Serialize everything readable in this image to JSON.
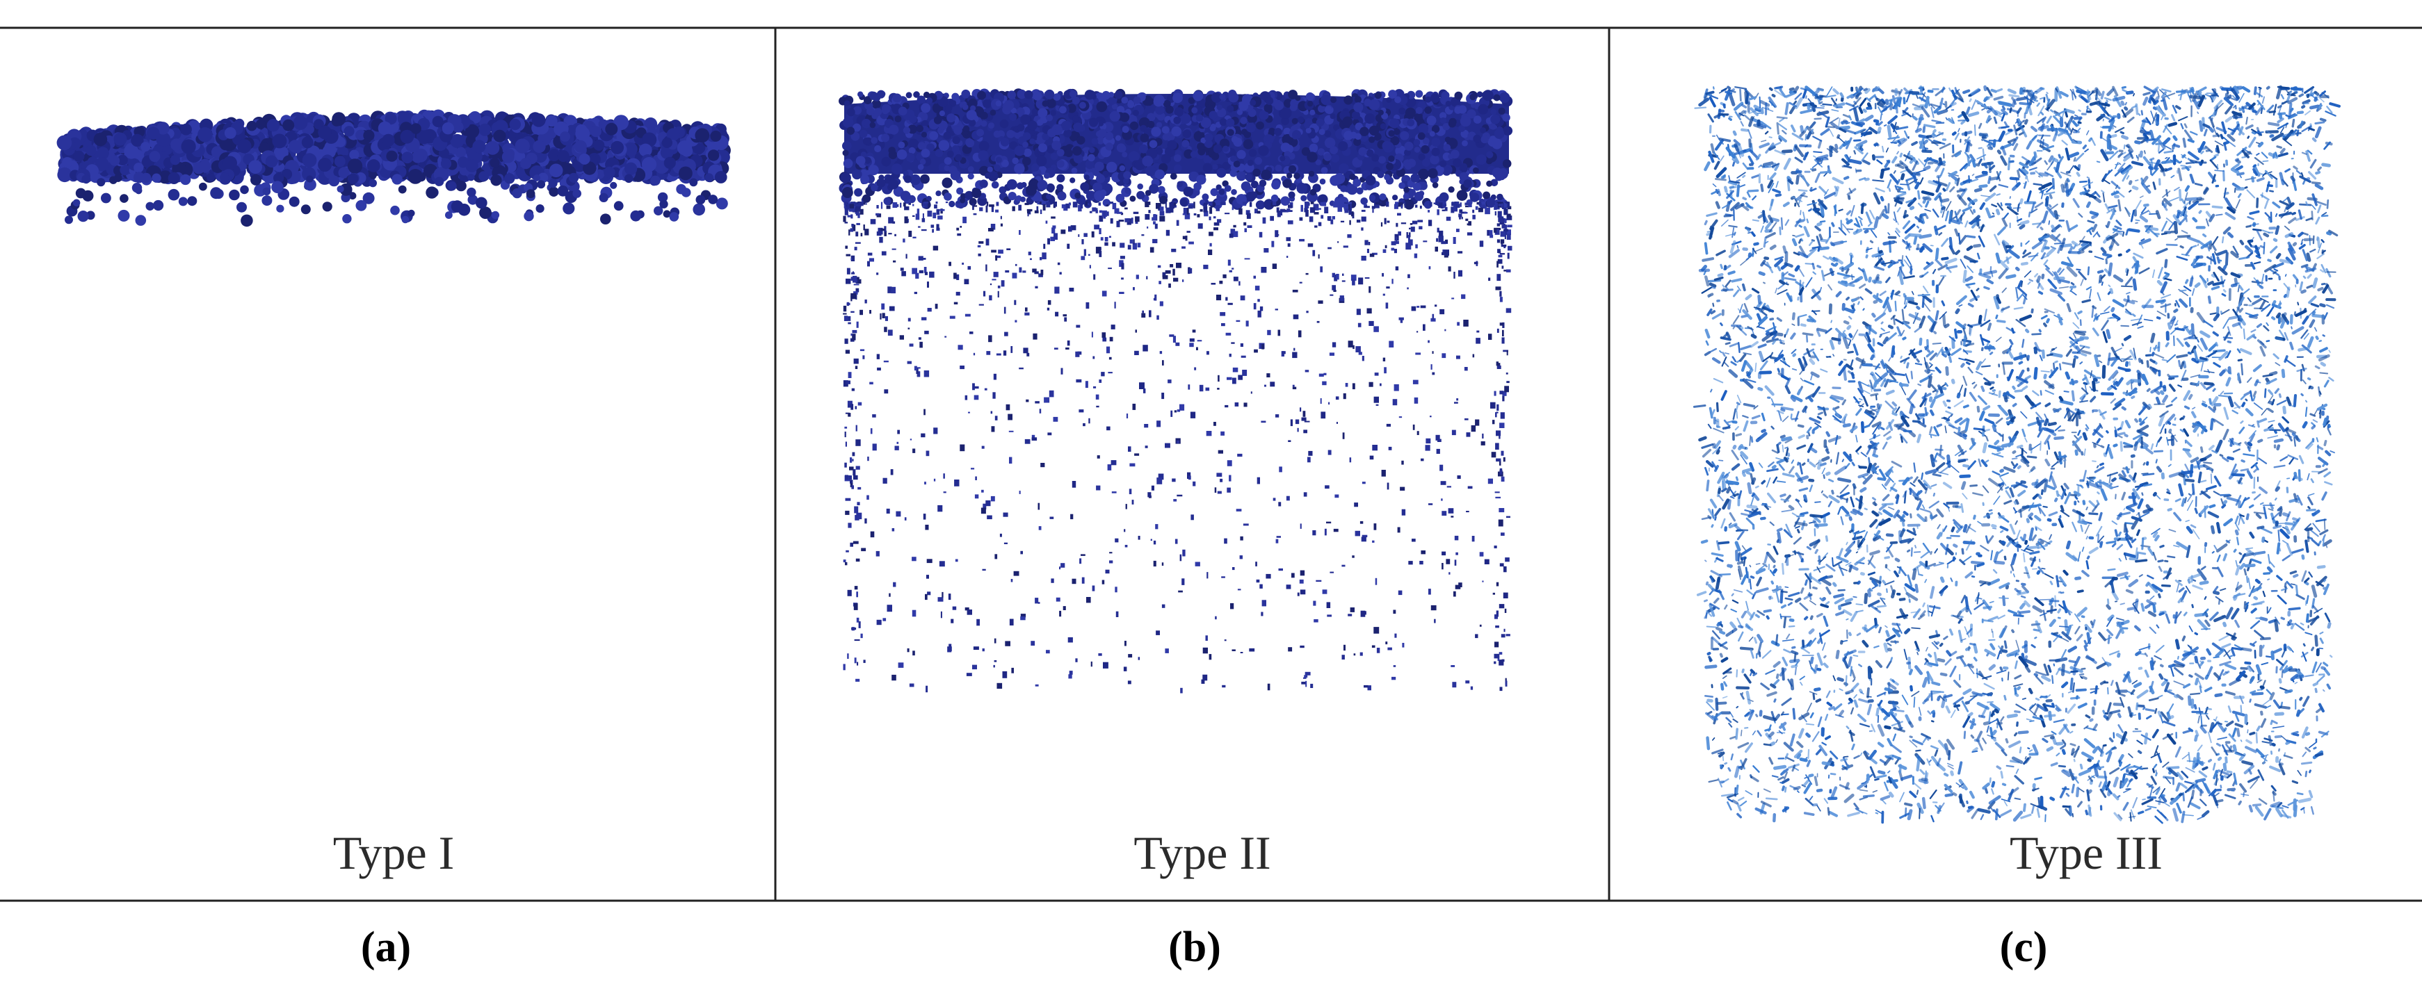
{
  "panels": [
    {
      "label": "Type I",
      "caption": "(a)"
    },
    {
      "label": "Type II",
      "caption": "(b)"
    },
    {
      "label": "Type III",
      "caption": "(c)"
    }
  ]
}
